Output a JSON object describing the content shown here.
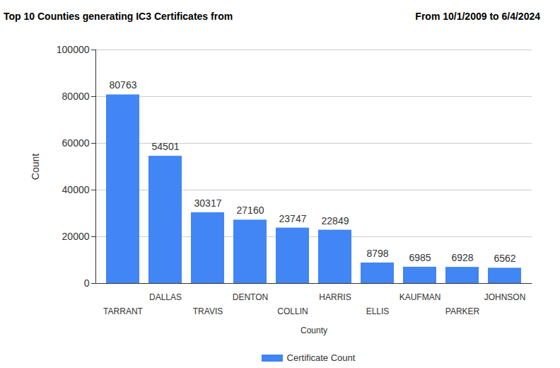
{
  "chart_data": {
    "type": "bar",
    "title": "Top 10 Counties generating IC3 Certificates from",
    "subtitle": "From 10/1/2009 to 6/4/2024",
    "x_label": "County",
    "y_label": "Count",
    "categories": [
      "TARRANT",
      "DALLAS",
      "TRAVIS",
      "DENTON",
      "COLLIN",
      "HARRIS",
      "ELLIS",
      "KAUFMAN",
      "PARKER",
      "JOHNSON"
    ],
    "series": [
      {
        "name": "Certificate Count",
        "color": "#4285f4",
        "values": [
          80763,
          54501,
          30317,
          27160,
          23747,
          22849,
          8798,
          6985,
          6928,
          6562
        ]
      }
    ],
    "ylim": [
      0,
      100000
    ],
    "yticks": [
      0,
      20000,
      40000,
      60000,
      80000,
      100000
    ],
    "grid": true,
    "data_labels": true,
    "legend": "bottom"
  }
}
